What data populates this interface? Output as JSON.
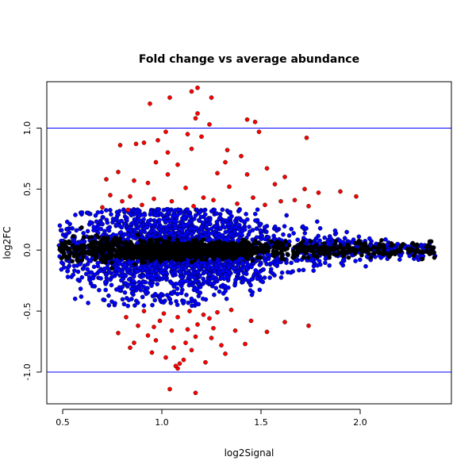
{
  "chart_data": {
    "type": "scatter",
    "title": "Fold change vs average abundance",
    "xlabel": "log2Signal",
    "ylabel": "log2FC",
    "xlim": [
      0.42,
      2.46
    ],
    "ylim": [
      -1.26,
      1.38
    ],
    "x_ticks": [
      "0.5",
      "1.0",
      "1.5",
      "2.0"
    ],
    "x_tick_values": [
      0.5,
      1.0,
      1.5,
      2.0
    ],
    "y_ticks": [
      "-1.0",
      "-0.5",
      "0.0",
      "0.5",
      "1.0"
    ],
    "y_tick_values": [
      -1.0,
      -0.5,
      0.0,
      0.5,
      1.0
    ],
    "hlines": [
      1.0,
      -1.0
    ],
    "hline_color": "#0000ff",
    "grid": false,
    "legend": "none",
    "colors": {
      "black_points": "#000000",
      "blue_points": "#0000ff",
      "red_points": "#ff0000"
    },
    "series": [
      {
        "color": "red",
        "points": [
          [
            1.18,
            1.33
          ],
          [
            1.15,
            1.3
          ],
          [
            1.25,
            1.25
          ],
          [
            1.04,
            1.25
          ],
          [
            0.94,
            1.2
          ],
          [
            1.18,
            1.12
          ],
          [
            1.17,
            1.08
          ],
          [
            1.24,
            1.03
          ],
          [
            1.43,
            1.07
          ],
          [
            1.47,
            1.05
          ],
          [
            1.73,
            0.92
          ],
          [
            1.49,
            0.97
          ],
          [
            1.02,
            0.97
          ],
          [
            1.13,
            0.95
          ],
          [
            1.2,
            0.93
          ],
          [
            0.98,
            0.9
          ],
          [
            0.91,
            0.88
          ],
          [
            0.87,
            0.87
          ],
          [
            0.79,
            0.86
          ],
          [
            1.03,
            0.8
          ],
          [
            1.15,
            0.83
          ],
          [
            1.33,
            0.82
          ],
          [
            1.4,
            0.77
          ],
          [
            1.32,
            0.72
          ],
          [
            0.97,
            0.72
          ],
          [
            1.08,
            0.7
          ],
          [
            0.78,
            0.64
          ],
          [
            1.03,
            0.62
          ],
          [
            1.28,
            0.63
          ],
          [
            1.43,
            0.62
          ],
          [
            1.53,
            0.67
          ],
          [
            1.62,
            0.6
          ],
          [
            0.72,
            0.58
          ],
          [
            0.86,
            0.57
          ],
          [
            0.93,
            0.55
          ],
          [
            1.12,
            0.51
          ],
          [
            1.34,
            0.52
          ],
          [
            1.57,
            0.54
          ],
          [
            1.72,
            0.5
          ],
          [
            1.79,
            0.47
          ],
          [
            1.9,
            0.48
          ],
          [
            1.98,
            0.44
          ],
          [
            0.74,
            0.45
          ],
          [
            0.84,
            0.44
          ],
          [
            0.96,
            0.42
          ],
          [
            1.21,
            0.43
          ],
          [
            1.46,
            0.43
          ],
          [
            1.6,
            0.4
          ],
          [
            1.67,
            0.41
          ],
          [
            0.8,
            0.4
          ],
          [
            1.05,
            0.4
          ],
          [
            1.26,
            0.41
          ],
          [
            1.38,
            0.38
          ],
          [
            0.9,
            0.37
          ],
          [
            1.16,
            0.36
          ],
          [
            1.52,
            0.37
          ],
          [
            1.74,
            0.36
          ],
          [
            0.7,
            0.35
          ],
          [
            0.83,
            0.33
          ],
          [
            0.82,
            -0.55
          ],
          [
            0.88,
            -0.62
          ],
          [
            0.93,
            -0.7
          ],
          [
            0.99,
            -0.58
          ],
          [
            1.05,
            -0.66
          ],
          [
            1.12,
            -0.76
          ],
          [
            1.18,
            -0.61
          ],
          [
            1.25,
            -0.72
          ],
          [
            1.32,
            -0.85
          ],
          [
            1.42,
            -0.77
          ],
          [
            1.53,
            -0.67
          ],
          [
            1.62,
            -0.59
          ],
          [
            1.74,
            -0.62
          ],
          [
            0.78,
            -0.68
          ],
          [
            0.86,
            -0.76
          ],
          [
            0.95,
            -0.84
          ],
          [
            1.02,
            -0.88
          ],
          [
            1.09,
            -0.93
          ],
          [
            1.15,
            -0.82
          ],
          [
            1.22,
            -0.92
          ],
          [
            1.3,
            -0.78
          ],
          [
            1.37,
            -0.66
          ],
          [
            1.45,
            -0.58
          ],
          [
            0.91,
            -0.5
          ],
          [
            1.01,
            -0.52
          ],
          [
            1.08,
            -0.55
          ],
          [
            1.14,
            -0.5
          ],
          [
            1.21,
            -0.53
          ],
          [
            1.28,
            -0.51
          ],
          [
            1.35,
            -0.49
          ],
          [
            0.84,
            -0.8
          ],
          [
            0.97,
            -0.74
          ],
          [
            1.06,
            -0.8
          ],
          [
            1.17,
            -0.71
          ],
          [
            1.26,
            -0.64
          ],
          [
            1.04,
            -1.14
          ],
          [
            1.17,
            -1.17
          ],
          [
            1.08,
            -0.97
          ],
          [
            1.07,
            -0.95
          ],
          [
            1.11,
            -0.9
          ],
          [
            0.96,
            -0.63
          ],
          [
            1.13,
            -0.65
          ],
          [
            1.24,
            -0.56
          ]
        ]
      }
    ]
  }
}
